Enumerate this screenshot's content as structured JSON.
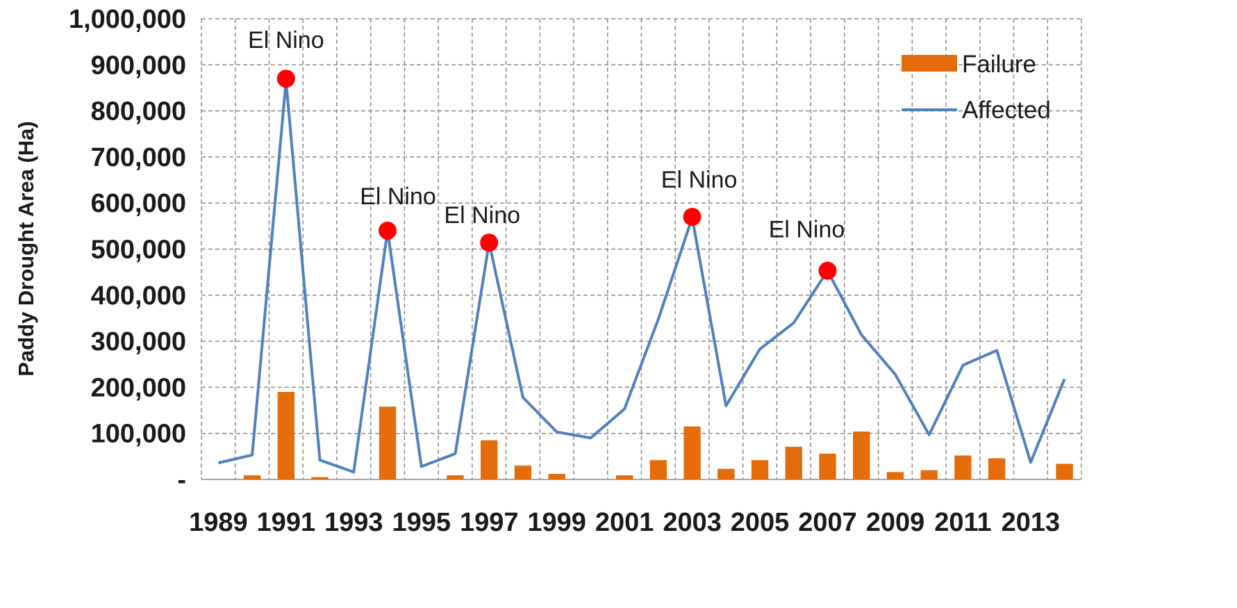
{
  "chart_data": {
    "type": "bar+line",
    "title": "",
    "xlabel": "",
    "ylabel": "Paddy Drought Area (Ha)",
    "ylim": [
      0,
      1000000
    ],
    "yticks": [
      0,
      100000,
      200000,
      300000,
      400000,
      500000,
      600000,
      700000,
      800000,
      900000,
      1000000
    ],
    "ytick_labels": [
      "-",
      "100,000",
      "200,000",
      "300,000",
      "400,000",
      "500,000",
      "600,000",
      "700,000",
      "800,000",
      "900,000",
      "1,000,000"
    ],
    "x": [
      1989,
      1990,
      1991,
      1992,
      1993,
      1994,
      1995,
      1996,
      1997,
      1998,
      1999,
      2000,
      2001,
      2002,
      2003,
      2004,
      2005,
      2006,
      2007,
      2008,
      2009,
      2010,
      2011,
      2012,
      2013,
      2014
    ],
    "xtick_labels": [
      "1989",
      "1991",
      "1993",
      "1995",
      "1997",
      "1999",
      "2001",
      "2003",
      "2005",
      "2007",
      "2009",
      "2011",
      "2013"
    ],
    "grid": true,
    "legend_position": "top-right",
    "series": [
      {
        "name": "Failure",
        "type": "bar",
        "color": "#E46C0A",
        "values": [
          0,
          9000,
          190000,
          5000,
          0,
          158000,
          0,
          9000,
          85000,
          30000,
          12000,
          0,
          9000,
          42000,
          115000,
          23000,
          42000,
          71000,
          56000,
          104000,
          16000,
          20000,
          52000,
          46000,
          0,
          34000
        ]
      },
      {
        "name": "Affected",
        "type": "line",
        "color": "#4F81BD",
        "values": [
          36000,
          53000,
          865000,
          42000,
          16000,
          540000,
          28000,
          56000,
          514000,
          178000,
          103000,
          90000,
          153000,
          348000,
          568000,
          160000,
          283000,
          340000,
          453000,
          314000,
          228000,
          97000,
          248000,
          280000,
          37000,
          218000
        ]
      }
    ],
    "highlight_color": "#FF0000",
    "annotations": [
      {
        "text": "El Nino",
        "year": 1991,
        "value": 870000
      },
      {
        "text": "El Nino",
        "year": 1994,
        "value": 540000
      },
      {
        "text": "El Nino",
        "year": 1997,
        "value": 514000
      },
      {
        "text": "El Nino",
        "year": 2003,
        "value": 570000
      },
      {
        "text": "El Nino",
        "year": 2007,
        "value": 453000
      }
    ]
  }
}
